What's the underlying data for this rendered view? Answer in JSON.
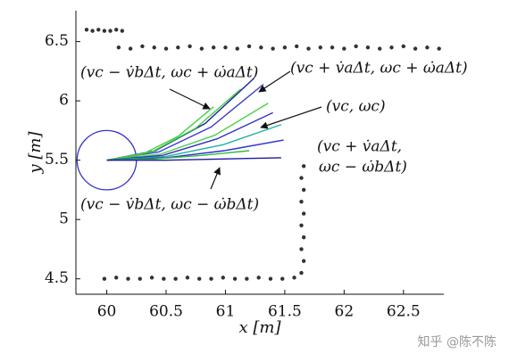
{
  "chart_data": {
    "type": "scatter",
    "xlabel": "x [m]",
    "ylabel": "y [m]",
    "xlim": [
      59.74,
      62.84
    ],
    "ylim": [
      4.37,
      6.76
    ],
    "xticks": [
      60,
      60.5,
      61,
      61.5,
      62,
      62.5
    ],
    "yticks": [
      4.5,
      5,
      5.5,
      6,
      6.5
    ],
    "robot": {
      "x": 60,
      "y": 5.5,
      "r": 0.25,
      "color": "#3535c8"
    },
    "series": [
      {
        "type": "scatter",
        "color": "#333333",
        "x": [
          59.83,
          59.88,
          59.93,
          59.98,
          60.03,
          60.08,
          60.13
        ],
        "y": [
          6.6,
          6.59,
          6.6,
          6.59,
          6.59,
          6.6,
          6.59
        ]
      },
      {
        "type": "scatter",
        "color": "#333333",
        "x": [
          60.1,
          60.2,
          60.3,
          60.4,
          60.5,
          60.6,
          60.7,
          60.8,
          60.9,
          61.0,
          61.1,
          61.2,
          61.3,
          61.4,
          61.5,
          61.6,
          61.7,
          61.8,
          61.9,
          62.0,
          62.1,
          62.2,
          62.3,
          62.4,
          62.5,
          62.6,
          62.7,
          62.8
        ],
        "y": [
          6.45,
          6.44,
          6.46,
          6.45,
          6.44,
          6.45,
          6.46,
          6.44,
          6.45,
          6.45,
          6.44,
          6.46,
          6.45,
          6.44,
          6.45,
          6.46,
          6.44,
          6.45,
          6.45,
          6.44,
          6.46,
          6.45,
          6.44,
          6.45,
          6.46,
          6.44,
          6.45,
          6.44
        ]
      },
      {
        "type": "scatter",
        "color": "#333333",
        "x": [
          59.98,
          60.08,
          60.18,
          60.28,
          60.38,
          60.48,
          60.58,
          60.68,
          60.78,
          60.88,
          60.98,
          61.08,
          61.18,
          61.28,
          61.38,
          61.48,
          61.58
        ],
        "y": [
          4.5,
          4.51,
          4.5,
          4.5,
          4.51,
          4.5,
          4.5,
          4.51,
          4.5,
          4.5,
          4.51,
          4.5,
          4.5,
          4.51,
          4.5,
          4.5,
          4.51
        ]
      },
      {
        "type": "scatter",
        "color": "#333333",
        "x": [
          61.64,
          61.66,
          61.64,
          61.66,
          61.64,
          61.66,
          61.64,
          61.66,
          61.64,
          61.66
        ],
        "y": [
          4.55,
          4.65,
          4.75,
          4.85,
          4.95,
          5.05,
          5.15,
          5.25,
          5.35,
          5.45
        ]
      },
      {
        "type": "line",
        "color": "#3a3ad0",
        "x": [
          60,
          60.44,
          60.88,
          61.32
        ],
        "y": [
          5.5,
          5.57,
          5.78,
          6.14
        ]
      },
      {
        "type": "line",
        "color": "#2020a0",
        "x": [
          60,
          60.41,
          60.83,
          61.24
        ],
        "y": [
          5.5,
          5.58,
          5.81,
          6.19
        ]
      },
      {
        "type": "line",
        "color": "#3cd23c",
        "x": [
          60,
          60.3,
          60.6,
          60.9
        ],
        "y": [
          5.5,
          5.55,
          5.7,
          5.95
        ]
      },
      {
        "type": "line",
        "color": "#3cd23c",
        "x": [
          60,
          60.38,
          60.75,
          61.13
        ],
        "y": [
          5.5,
          5.57,
          5.77,
          6.1
        ]
      },
      {
        "type": "line",
        "color": "#4ad04a",
        "x": [
          60,
          60.45,
          60.91,
          61.36
        ],
        "y": [
          5.5,
          5.55,
          5.71,
          5.98
        ]
      },
      {
        "type": "line",
        "color": "#3030c0",
        "x": [
          60,
          60.47,
          60.93,
          61.4
        ],
        "y": [
          5.5,
          5.54,
          5.68,
          5.9
        ]
      },
      {
        "type": "line",
        "color": "#20b0a0",
        "x": [
          60,
          60.49,
          60.98,
          61.47
        ],
        "y": [
          5.5,
          5.53,
          5.63,
          5.8
        ]
      },
      {
        "type": "line",
        "color": "#2c2cd8",
        "x": [
          60,
          60.5,
          60.99,
          61.49
        ],
        "y": [
          5.5,
          5.52,
          5.58,
          5.67
        ]
      },
      {
        "type": "line",
        "color": "#30c030",
        "x": [
          60,
          60.4,
          60.8,
          61.2
        ],
        "y": [
          5.5,
          5.51,
          5.54,
          5.58
        ]
      },
      {
        "type": "line",
        "color": "#1a1aa0",
        "x": [
          60,
          60.49,
          60.98,
          61.47
        ],
        "y": [
          5.5,
          5.5,
          5.51,
          5.52
        ]
      }
    ],
    "annotations": [
      "(vc − v̇bΔt, ωc + ω̇aΔt)",
      "(vc + v̇aΔt, ωc + ω̇aΔt)",
      "(vc, ωc)",
      "(vc + v̇aΔt,",
      "ωc − ω̇bΔt)",
      "(vc − v̇bΔt, ωc − ω̇bΔt)"
    ],
    "watermark": "知乎 @陈不陈"
  }
}
